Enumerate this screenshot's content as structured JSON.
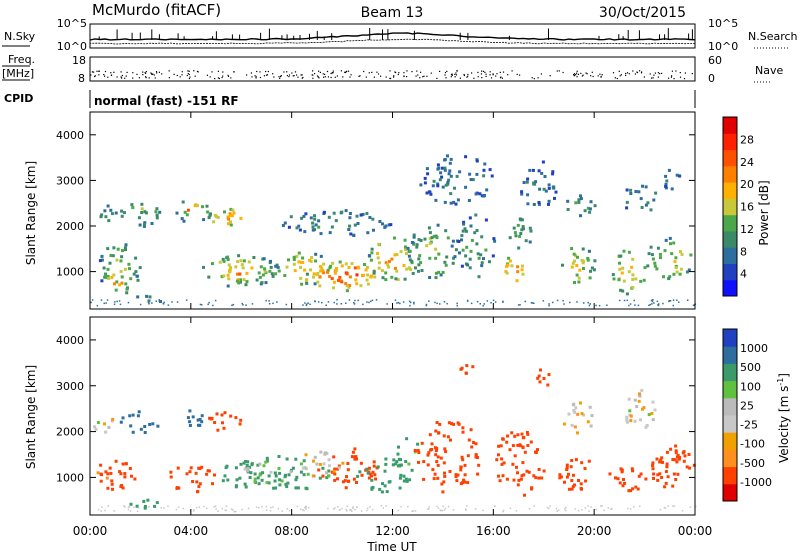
{
  "header": {
    "station": "McMurdo (fitACF)",
    "beam": "Beam 13",
    "date": "30/Oct/2015"
  },
  "noise_panel": {
    "left_label": "N.Sky",
    "right_label": "N.Search",
    "ticks": [
      "10^5",
      "10^0"
    ]
  },
  "freq_panel": {
    "left_label_line1": "Freq.",
    "left_label_line2": "[MHz]",
    "left_ticks": [
      "18",
      "8"
    ],
    "right_label": "Nave",
    "right_ticks": [
      "60",
      "0"
    ]
  },
  "cpid_panel": {
    "label": "CPID",
    "text": "normal (fast) -151 RF"
  },
  "x_axis": {
    "label": "Time UT",
    "ticks": [
      "00:00",
      "04:00",
      "08:00",
      "12:00",
      "16:00",
      "20:00",
      "00:00"
    ]
  },
  "colors": {
    "power_scale": [
      "#1010ff",
      "#2040c0",
      "#2e6e9e",
      "#3a8a6a",
      "#4aa848",
      "#c8c83a",
      "#ffb000",
      "#ff8000",
      "#ff5000",
      "#ff2000",
      "#e00000"
    ],
    "velocity_scale": [
      "#e00000",
      "#ff4000",
      "#ff9020",
      "#f0a000",
      "#c8c8c8",
      "#bbbbbb",
      "#60c040",
      "#3a9a6a",
      "#2e6e9e",
      "#2040c0"
    ]
  },
  "chart_data": [
    {
      "type": "heatmap",
      "title": "",
      "ylabel": "Slant Range [km]",
      "xlabel": "",
      "x_range_hours": [
        0,
        24
      ],
      "ylim": [
        180,
        4500
      ],
      "y_ticks": [
        1000,
        2000,
        3000,
        4000
      ],
      "colorbar": {
        "label": "Power [dB]",
        "range": [
          0,
          32
        ],
        "ticks": [
          "4",
          "8",
          "12",
          "16",
          "20",
          "24",
          "28"
        ]
      },
      "blobs": [
        {
          "t0": 0.0,
          "t1": 1.0,
          "r0": 2100,
          "r1": 2500,
          "v": 10
        },
        {
          "t0": 0.3,
          "t1": 2.0,
          "r0": 500,
          "r1": 1700,
          "v": 14
        },
        {
          "t0": 0.5,
          "t1": 1.5,
          "r0": 600,
          "r1": 1000,
          "v": 22
        },
        {
          "t0": 1.1,
          "t1": 2.8,
          "r0": 2000,
          "r1": 2600,
          "v": 12
        },
        {
          "t0": 1.5,
          "t1": 3.0,
          "r0": 350,
          "r1": 500,
          "v": 12
        },
        {
          "t0": 1.8,
          "t1": 2.6,
          "r0": 2300,
          "r1": 2600,
          "v": 18
        },
        {
          "t0": 3.3,
          "t1": 4.8,
          "r0": 2100,
          "r1": 2600,
          "v": 16
        },
        {
          "t0": 3.6,
          "t1": 4.5,
          "r0": 2300,
          "r1": 2500,
          "v": 26
        },
        {
          "t0": 4.7,
          "t1": 6.2,
          "r0": 2000,
          "r1": 2400,
          "v": 22
        },
        {
          "t0": 5.3,
          "t1": 6.0,
          "r0": 2100,
          "r1": 2300,
          "v": 26
        },
        {
          "t0": 4.2,
          "t1": 7.5,
          "r0": 700,
          "r1": 1400,
          "v": 16
        },
        {
          "t0": 5.0,
          "t1": 7.0,
          "r0": 800,
          "r1": 1200,
          "v": 22
        },
        {
          "t0": 7.0,
          "t1": 9.5,
          "r0": 700,
          "r1": 1500,
          "v": 18
        },
        {
          "t0": 8.5,
          "t1": 11.5,
          "r0": 600,
          "r1": 1300,
          "v": 24
        },
        {
          "t0": 9.5,
          "t1": 11.0,
          "r0": 700,
          "r1": 1200,
          "v": 30
        },
        {
          "t0": 11.0,
          "t1": 13.0,
          "r0": 800,
          "r1": 1800,
          "v": 20
        },
        {
          "t0": 7.5,
          "t1": 12.0,
          "r0": 1800,
          "r1": 2400,
          "v": 10
        },
        {
          "t0": 12.5,
          "t1": 14.5,
          "r0": 800,
          "r1": 2200,
          "v": 14
        },
        {
          "t0": 13.0,
          "t1": 16.0,
          "r0": 2500,
          "r1": 3600,
          "v": 8
        },
        {
          "t0": 14.5,
          "t1": 16.0,
          "r0": 900,
          "r1": 2300,
          "v": 12
        },
        {
          "t0": 16.3,
          "t1": 17.3,
          "r0": 700,
          "r1": 1400,
          "v": 22
        },
        {
          "t0": 16.5,
          "t1": 17.5,
          "r0": 1500,
          "r1": 2300,
          "v": 12
        },
        {
          "t0": 17.0,
          "t1": 18.5,
          "r0": 2400,
          "r1": 3500,
          "v": 8
        },
        {
          "t0": 18.5,
          "t1": 20.0,
          "r0": 700,
          "r1": 1600,
          "v": 16
        },
        {
          "t0": 18.8,
          "t1": 20.0,
          "r0": 2200,
          "r1": 2700,
          "v": 12
        },
        {
          "t0": 20.5,
          "t1": 22.0,
          "r0": 500,
          "r1": 1500,
          "v": 18
        },
        {
          "t0": 21.0,
          "t1": 22.5,
          "r0": 2300,
          "r1": 3000,
          "v": 10
        },
        {
          "t0": 22.0,
          "t1": 24.0,
          "r0": 800,
          "r1": 1800,
          "v": 16
        },
        {
          "t0": 22.5,
          "t1": 23.5,
          "r0": 2800,
          "r1": 3300,
          "v": 8
        }
      ]
    },
    {
      "type": "heatmap",
      "title": "",
      "ylabel": "Slant Range [km]",
      "xlabel": "Time UT",
      "x_range_hours": [
        0,
        24
      ],
      "ylim": [
        180,
        4500
      ],
      "y_ticks": [
        1000,
        2000,
        3000,
        4000
      ],
      "colorbar": {
        "label": "Velocity [m s^-1]",
        "ticks": [
          "1000",
          "500",
          "100",
          "25",
          "-25",
          "-100",
          "-500",
          "-1000"
        ]
      },
      "blobs": [
        {
          "t0": 0.0,
          "t1": 1.0,
          "r0": 2000,
          "r1": 2400,
          "v": 0
        },
        {
          "t0": 0.2,
          "t1": 1.8,
          "r0": 700,
          "r1": 1500,
          "v": -150
        },
        {
          "t0": 1.1,
          "t1": 2.8,
          "r0": 2000,
          "r1": 2500,
          "v": 600
        },
        {
          "t0": 1.5,
          "t1": 3.0,
          "r0": 350,
          "r1": 550,
          "v": 300
        },
        {
          "t0": 3.3,
          "t1": 4.5,
          "r0": 2000,
          "r1": 2500,
          "v": 600
        },
        {
          "t0": 4.5,
          "t1": 6.0,
          "r0": 2000,
          "r1": 2500,
          "v": -200
        },
        {
          "t0": 3.0,
          "t1": 5.0,
          "r0": 700,
          "r1": 1300,
          "v": -200
        },
        {
          "t0": 5.0,
          "t1": 9.5,
          "r0": 700,
          "r1": 1500,
          "v": 200
        },
        {
          "t0": 6.0,
          "t1": 8.0,
          "r0": 900,
          "r1": 1400,
          "v": 80
        },
        {
          "t0": 9.0,
          "t1": 11.5,
          "r0": 800,
          "r1": 1700,
          "v": -200
        },
        {
          "t0": 8.0,
          "t1": 10.0,
          "r0": 1000,
          "r1": 1600,
          "v": 0
        },
        {
          "t0": 10.5,
          "t1": 12.8,
          "r0": 700,
          "r1": 1500,
          "v": 250
        },
        {
          "t0": 12.0,
          "t1": 13.0,
          "r0": 1200,
          "r1": 2000,
          "v": 150
        },
        {
          "t0": 12.8,
          "t1": 15.5,
          "r0": 700,
          "r1": 2300,
          "v": -200
        },
        {
          "t0": 14.5,
          "t1": 15.3,
          "r0": 3200,
          "r1": 3500,
          "v": -200
        },
        {
          "t0": 16.0,
          "t1": 18.0,
          "r0": 600,
          "r1": 2100,
          "v": -200
        },
        {
          "t0": 17.5,
          "t1": 18.5,
          "r0": 3000,
          "r1": 3400,
          "v": -150
        },
        {
          "t0": 18.5,
          "t1": 20.0,
          "r0": 700,
          "r1": 1500,
          "v": -200
        },
        {
          "t0": 18.5,
          "t1": 20.0,
          "r0": 2000,
          "r1": 2700,
          "v": 0
        },
        {
          "t0": 21.0,
          "t1": 22.5,
          "r0": 2100,
          "r1": 3000,
          "v": 0
        },
        {
          "t0": 20.5,
          "t1": 22.0,
          "r0": 700,
          "r1": 1300,
          "v": -300
        },
        {
          "t0": 22.0,
          "t1": 24.0,
          "r0": 800,
          "r1": 1600,
          "v": -250
        },
        {
          "t0": 22.5,
          "t1": 24.0,
          "r0": 1400,
          "r1": 1800,
          "v": -150
        }
      ]
    }
  ]
}
